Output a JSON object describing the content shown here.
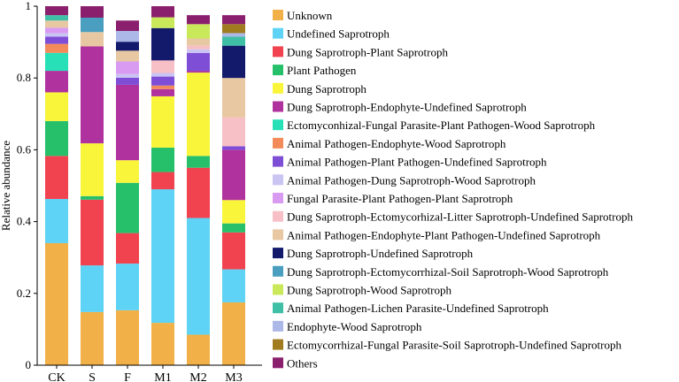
{
  "chart_data": {
    "type": "bar",
    "stacked": true,
    "xlabel": "",
    "ylabel": "Relative abundance",
    "ylim": [
      0,
      1
    ],
    "yticks": [
      "0",
      "0.2",
      "0.4",
      "0.6",
      "0.8",
      "1"
    ],
    "legend_placement": "right",
    "categories": [
      "CK",
      "S",
      "F",
      "M1",
      "M2",
      "M3"
    ],
    "series": [
      {
        "name": "Unknown",
        "color": "#F2B049",
        "values": [
          0.34,
          0.148,
          0.153,
          0.118,
          0.085,
          0.175
        ]
      },
      {
        "name": "Undefined Saprotroph",
        "color": "#5FD3F5",
        "values": [
          0.123,
          0.13,
          0.13,
          0.372,
          0.325,
          0.092
        ]
      },
      {
        "name": "Dung Saprotroph-Plant Saprotroph",
        "color": "#F0424F",
        "values": [
          0.12,
          0.183,
          0.085,
          0.048,
          0.14,
          0.103
        ]
      },
      {
        "name": "Plant Pathogen",
        "color": "#27C06A",
        "values": [
          0.097,
          0.01,
          0.14,
          0.068,
          0.033,
          0.025
        ]
      },
      {
        "name": "Dung Saprotroph",
        "color": "#F9F53A",
        "values": [
          0.08,
          0.147,
          0.063,
          0.143,
          0.232,
          0.065
        ]
      },
      {
        "name": "Dung Saprotroph-Endophyte-Undefined Saprotroph",
        "color": "#B0329E",
        "values": [
          0.06,
          0.27,
          0.21,
          0.02,
          0.005,
          0.14
        ]
      },
      {
        "name": "Ectomyconhizal-Fungal Parasite-Plant Pathogen-Wood Saprotroph",
        "color": "#27E0B7",
        "values": [
          0.05,
          0.0,
          0.0,
          0.0,
          0.0,
          0.0
        ]
      },
      {
        "name": "Animal Pathogen-Endophyte-Wood Saprotroph",
        "color": "#F28A5A",
        "values": [
          0.025,
          0.0,
          0.0,
          0.01,
          0.0,
          0.0
        ]
      },
      {
        "name": "Animal Pathogen-Plant Pathogen-Undefined Saprotroph",
        "color": "#7E4FD6",
        "values": [
          0.02,
          0.0,
          0.02,
          0.025,
          0.05,
          0.01
        ]
      },
      {
        "name": "Animal Pathogen-Dung Saprotroph-Wood Saprotroph",
        "color": "#C9C4F2",
        "values": [
          0.01,
          0.0,
          0.01,
          0.01,
          0.01,
          0.0
        ]
      },
      {
        "name": "Fungal Parasite-Plant Pathogen-Plant Saprotroph",
        "color": "#D99BF2",
        "values": [
          0.015,
          0.0,
          0.035,
          0.0,
          0.0,
          0.0
        ]
      },
      {
        "name": "Dung Saprotroph-Ectomycorhizal-Litter Saprotroph-Undefined Saprotroph",
        "color": "#F7BFC6",
        "values": [
          0.0,
          0.0,
          0.0,
          0.035,
          0.01,
          0.08
        ]
      },
      {
        "name": "Animal Pathogen-Endophyte-Plant Pathogen-Undefined Saprotroph",
        "color": "#E8C8A2",
        "values": [
          0.02,
          0.04,
          0.03,
          0.0,
          0.02,
          0.11
        ]
      },
      {
        "name": "Dung Saprotroph-Undefined Saprotroph",
        "color": "#131A6B",
        "values": [
          0.0,
          0.0,
          0.025,
          0.09,
          0.0,
          0.09
        ]
      },
      {
        "name": "Dung Saprotroph-Ectomycorrhizal-Soil Saprotroph-Wood Saprotroph",
        "color": "#4A9EC0",
        "values": [
          0.0,
          0.04,
          0.0,
          0.0,
          0.0,
          0.0
        ]
      },
      {
        "name": "Dung Saprotroph-Wood Saprotroph",
        "color": "#C9E85A",
        "values": [
          0.0,
          0.0,
          0.0,
          0.03,
          0.04,
          0.0
        ]
      },
      {
        "name": "Animal Pathogen-Lichen Parasite-Undefined Saprotroph",
        "color": "#3FBFA5",
        "values": [
          0.015,
          0.0,
          0.0,
          0.0,
          0.0,
          0.025
        ]
      },
      {
        "name": "Endophyte-Wood Saprotroph",
        "color": "#ACB8E8",
        "values": [
          0.0,
          0.0,
          0.03,
          0.0,
          0.0,
          0.01
        ]
      },
      {
        "name": "Ectomycorrhizal-Fungal Parasite-Soil Saprotroph-Undefined Saprotroph",
        "color": "#A07B1F",
        "values": [
          0.0,
          0.0,
          0.0,
          0.0,
          0.0,
          0.025
        ]
      },
      {
        "name": "Others",
        "color": "#8A1F6E",
        "values": [
          0.025,
          0.032,
          0.029,
          0.031,
          0.025,
          0.025
        ]
      }
    ]
  }
}
